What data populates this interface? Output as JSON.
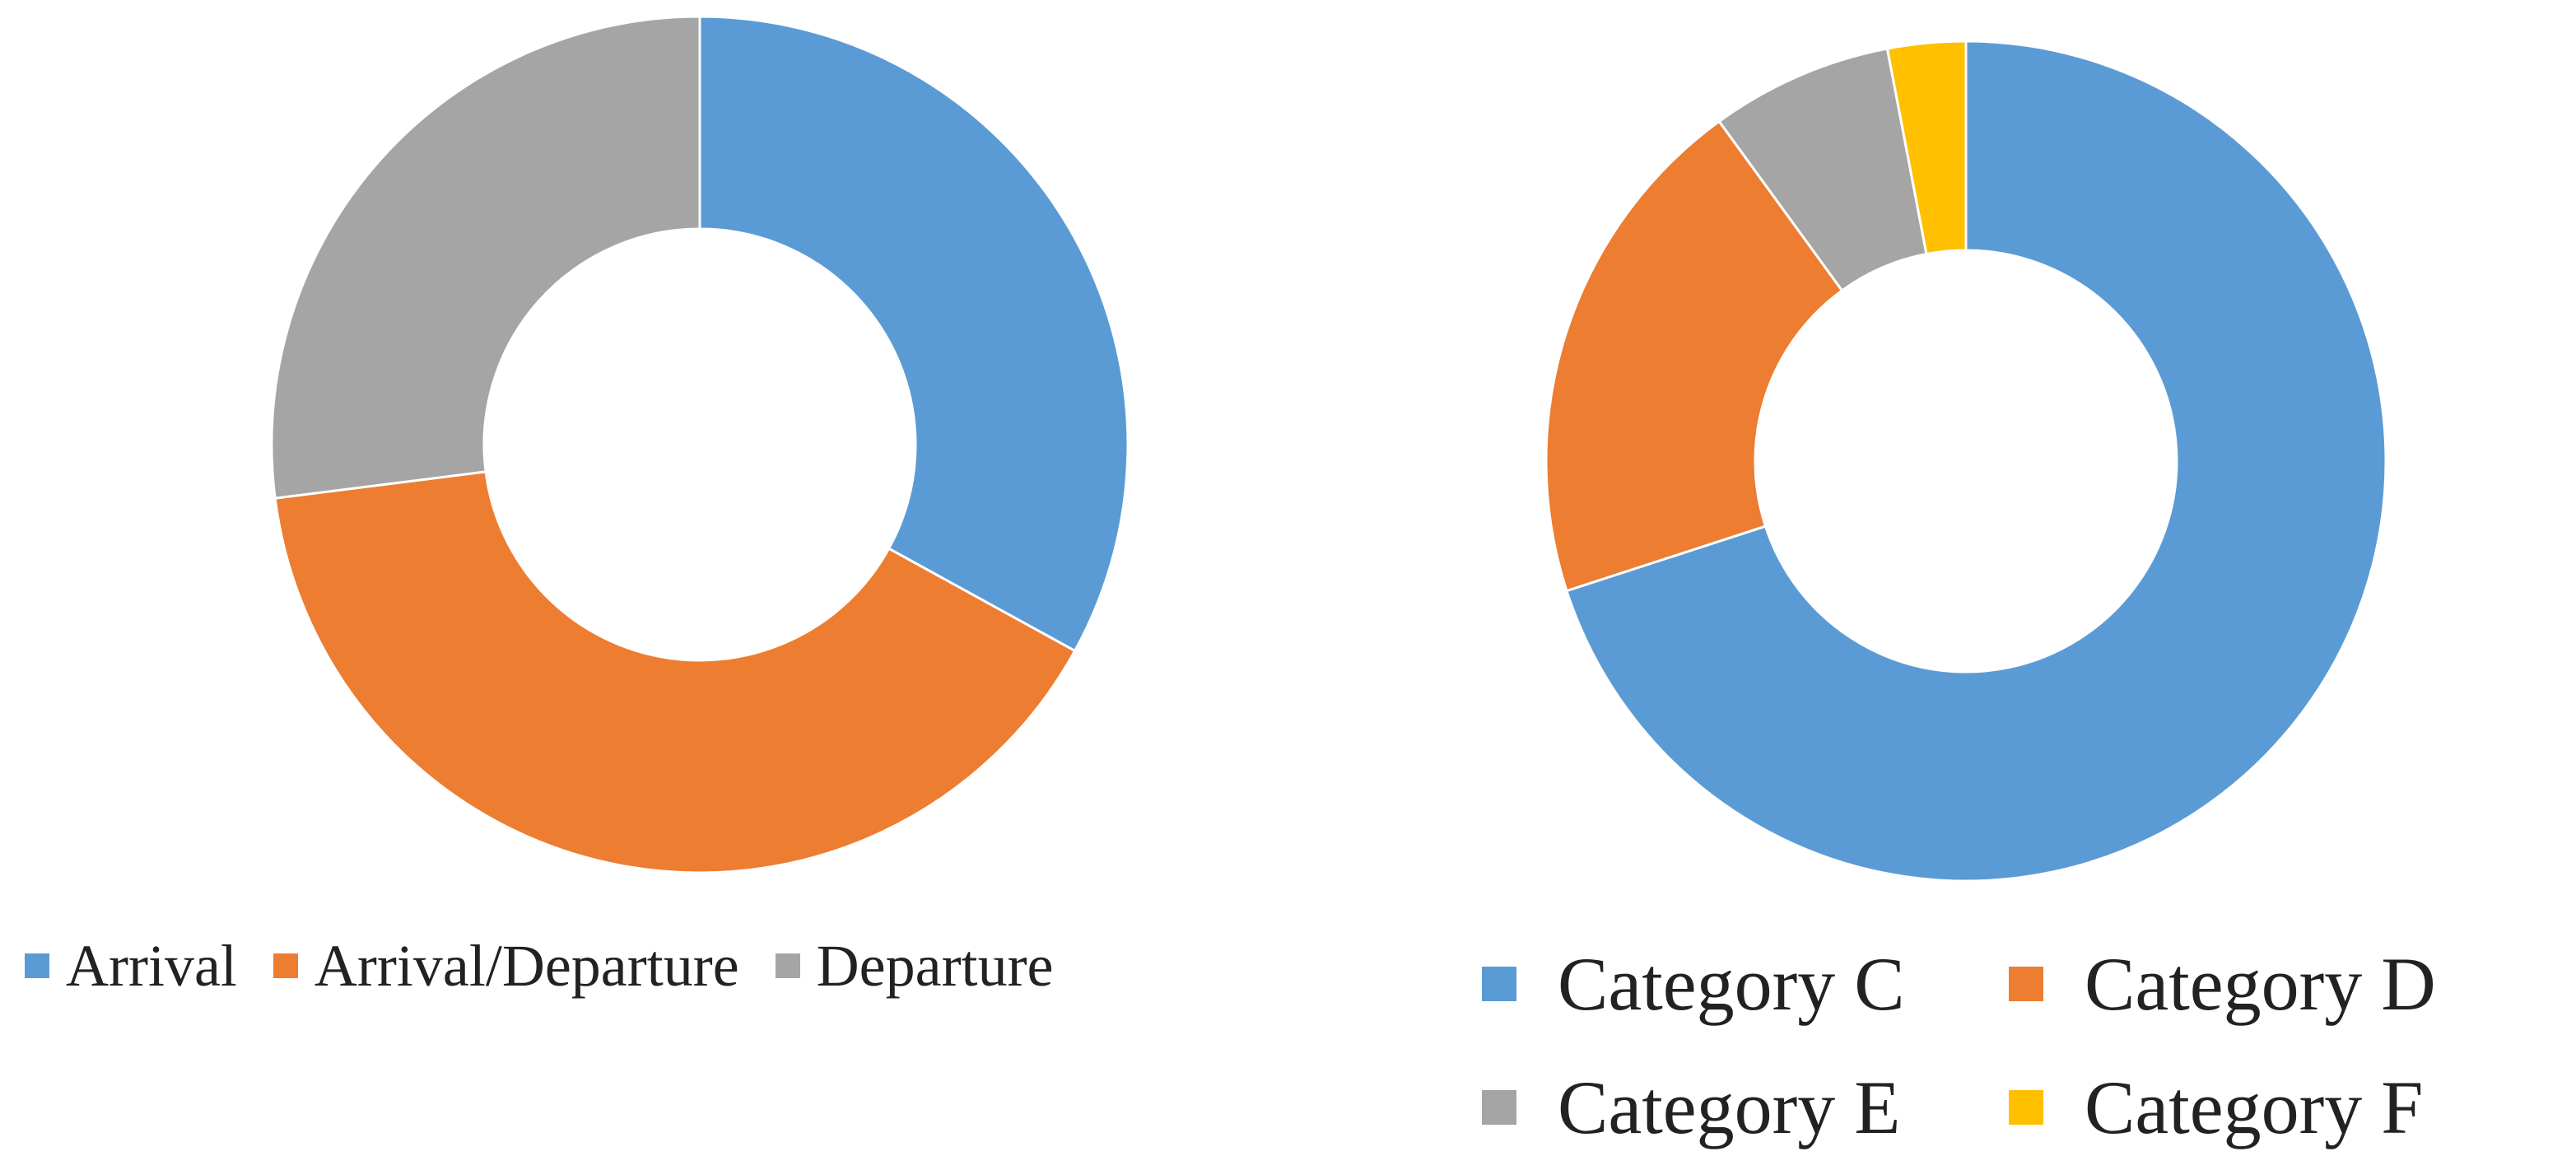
{
  "chart_data": [
    {
      "type": "donut",
      "series": [
        {
          "label": "Arrival",
          "value": 33,
          "color": "#5B9BD5"
        },
        {
          "label": "Arrival/Departure",
          "value": 40,
          "color": "#ED7D31"
        },
        {
          "label": "Departure",
          "value": 27,
          "color": "#A5A5A5"
        }
      ],
      "legend_position": "bottom"
    },
    {
      "type": "donut",
      "series": [
        {
          "label": "Category C",
          "value": 70,
          "color": "#5B9BD5"
        },
        {
          "label": "Category D",
          "value": 20,
          "color": "#ED7D31"
        },
        {
          "label": "Category E",
          "value": 7,
          "color": "#A5A5A5"
        },
        {
          "label": "Category F",
          "value": 3,
          "color": "#FFC000"
        }
      ],
      "legend_position": "bottom"
    }
  ]
}
